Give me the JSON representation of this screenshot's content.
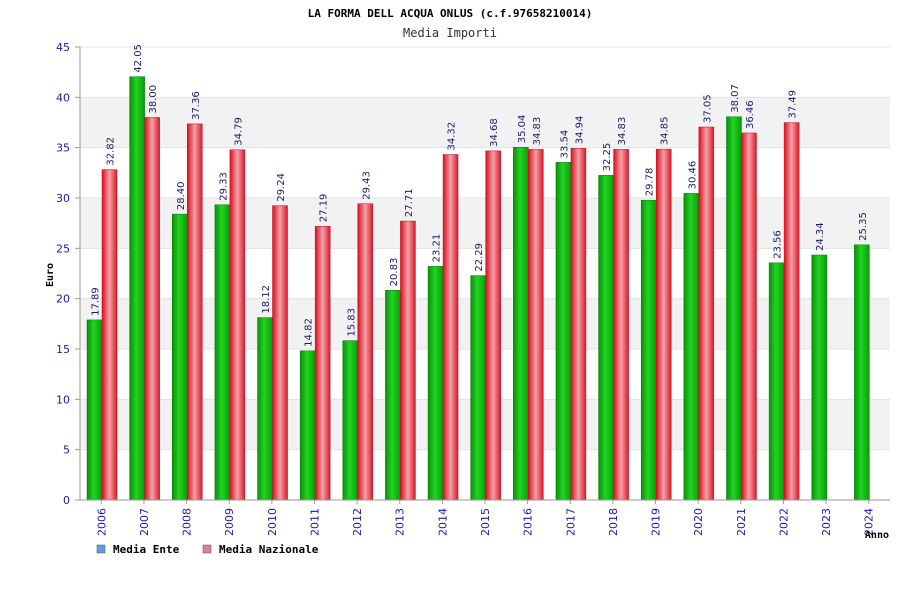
{
  "chart_data": {
    "type": "bar",
    "title": "LA FORMA DELL ACQUA ONLUS (c.f.97658210014)",
    "subtitle": "Media Importi",
    "xlabel": "Anno",
    "ylabel": "Euro",
    "ylim": [
      0,
      45
    ],
    "yticks": [
      0,
      5,
      10,
      15,
      20,
      25,
      30,
      35,
      40,
      45
    ],
    "grid": true,
    "legend_position": "bottom-left",
    "categories": [
      "2006",
      "2007",
      "2008",
      "2009",
      "2010",
      "2011",
      "2012",
      "2013",
      "2014",
      "2015",
      "2016",
      "2017",
      "2018",
      "2019",
      "2020",
      "2021",
      "2022",
      "2023",
      "2024"
    ],
    "series": [
      {
        "name": "Media Ente",
        "color": "#14b814",
        "values": [
          17.89,
          42.05,
          28.4,
          29.33,
          18.12,
          14.82,
          15.83,
          20.83,
          23.21,
          22.29,
          35.04,
          33.54,
          32.25,
          29.78,
          30.46,
          38.07,
          23.56,
          24.34,
          25.35
        ],
        "labels": [
          "17.89",
          "42.05",
          "28.40",
          "29.33",
          "18.12",
          "14.82",
          "15.83",
          "20.83",
          "23.21",
          "22.29",
          "35.04",
          "33.54",
          "32.25",
          "29.78",
          "30.46",
          "38.07",
          "23.56",
          "24.34",
          "25.35"
        ]
      },
      {
        "name": "Media Nazionale",
        "color": "#e0303a",
        "values": [
          32.82,
          38.0,
          37.36,
          34.79,
          29.24,
          27.19,
          29.43,
          27.71,
          34.32,
          34.68,
          34.83,
          34.94,
          34.83,
          34.85,
          37.05,
          36.46,
          37.49,
          null,
          null
        ],
        "labels": [
          "32.82",
          "38.00",
          "37.36",
          "34.79",
          "29.24",
          "27.19",
          "29.43",
          "27.71",
          "34.32",
          "34.68",
          "34.83",
          "34.94",
          "34.83",
          "34.85",
          "37.05",
          "36.46",
          "37.49",
          null,
          null
        ]
      }
    ],
    "legend": [
      {
        "name": "Media Ente",
        "swatch": "#5a9ee8"
      },
      {
        "name": "Media Nazionale",
        "swatch": "#e07aa8"
      }
    ]
  }
}
